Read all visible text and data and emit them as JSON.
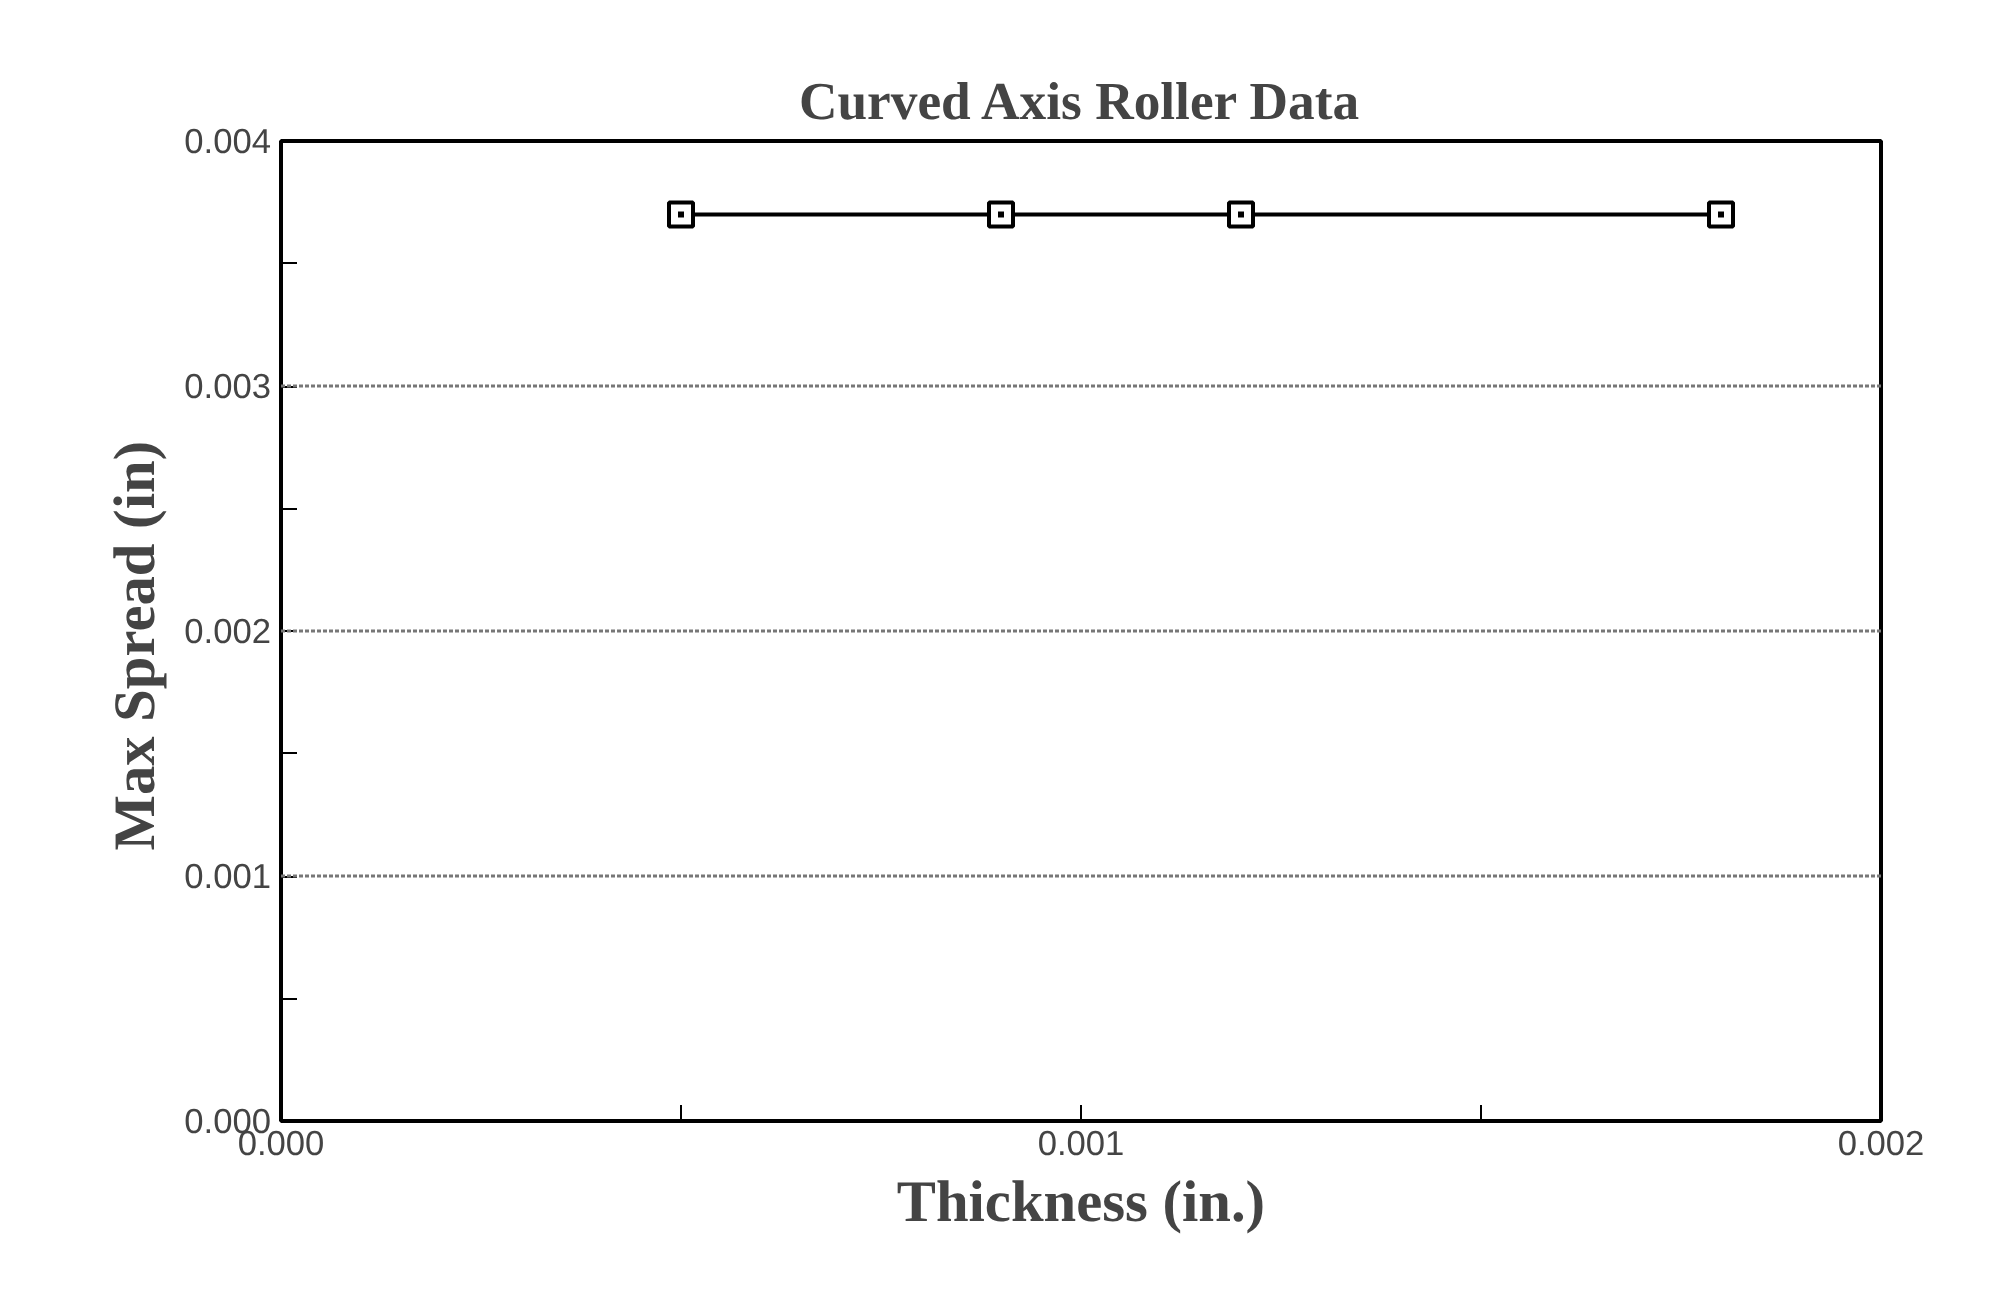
{
  "chart_data": {
    "type": "line",
    "title": "Curved Axis Roller Data",
    "xlabel": "Thickness (in.)",
    "ylabel": "Max  Spread  (in)",
    "x": [
      0.0005,
      0.0009,
      0.0012,
      0.0018
    ],
    "series": [
      {
        "color": "#000000",
        "values": [
          0.0037,
          0.0037,
          0.0037,
          0.0037
        ]
      }
    ],
    "marker": "square",
    "line_style": "solid",
    "grid": "y",
    "xlim": [
      0,
      0.002
    ],
    "ylim": [
      0,
      0.004
    ],
    "xticks": [
      {
        "value": 0,
        "label": "0.000"
      },
      {
        "value": 0.0005,
        "label": null
      },
      {
        "value": 0.001,
        "label": "0.001"
      },
      {
        "value": 0.0015,
        "label": null
      },
      {
        "value": 0.002,
        "label": "0.002"
      }
    ],
    "yticks": [
      {
        "value": 0,
        "label": "0.000"
      },
      {
        "value": 0.0005,
        "label": null
      },
      {
        "value": 0.001,
        "label": "0.001"
      },
      {
        "value": 0.0015,
        "label": null
      },
      {
        "value": 0.002,
        "label": "0.002"
      },
      {
        "value": 0.0025,
        "label": null
      },
      {
        "value": 0.003,
        "label": "0.003"
      },
      {
        "value": 0.0035,
        "label": null
      },
      {
        "value": 0.004,
        "label": "0.004"
      }
    ]
  }
}
